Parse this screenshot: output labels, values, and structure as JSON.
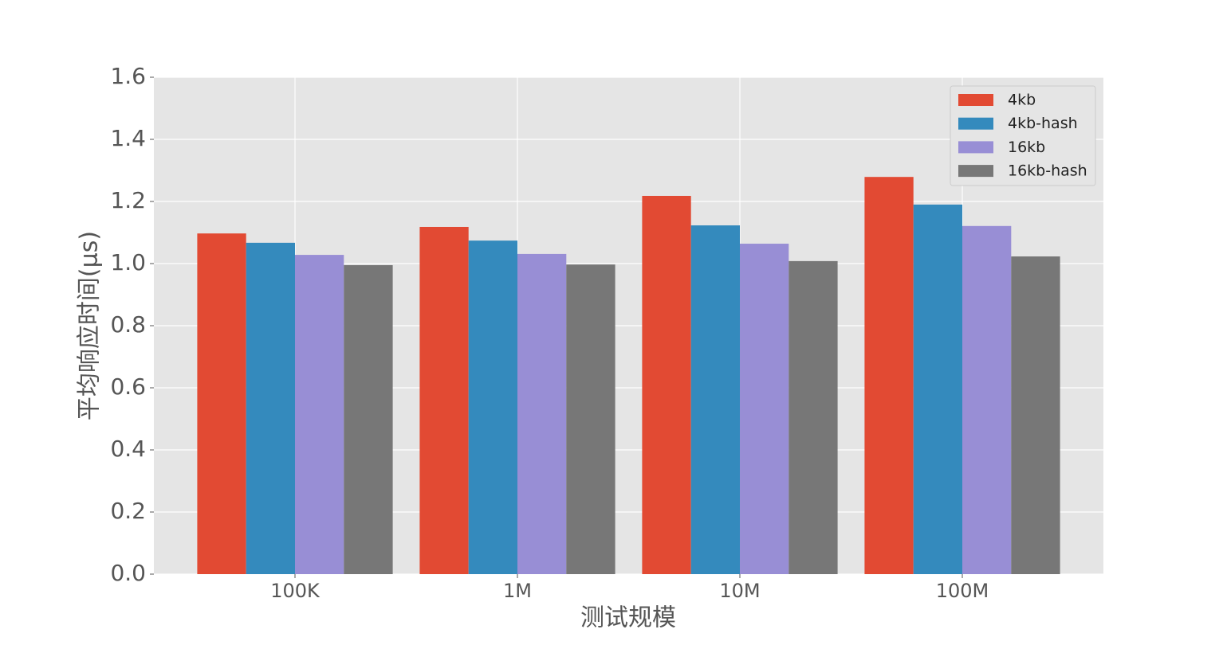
{
  "chart_data": {
    "type": "bar",
    "categories": [
      "100K",
      "1M",
      "10M",
      "100M"
    ],
    "series": [
      {
        "name": "4kb",
        "color": "#e24a33",
        "values": [
          1.097,
          1.118,
          1.218,
          1.279
        ]
      },
      {
        "name": "4kb-hash",
        "color": "#348abd",
        "values": [
          1.067,
          1.074,
          1.123,
          1.19
        ]
      },
      {
        "name": "16kb",
        "color": "#988ed5",
        "values": [
          1.028,
          1.031,
          1.064,
          1.121
        ]
      },
      {
        "name": "16kb-hash",
        "color": "#777777",
        "values": [
          0.995,
          0.997,
          1.008,
          1.023
        ]
      }
    ],
    "x_label": "测试规模",
    "y_label": "平均响应时间(μs)",
    "ylim": [
      0,
      1.6
    ],
    "yticks": [
      {
        "value": 0,
        "label": "0.0"
      },
      0.2,
      0.4,
      0.6,
      0.8,
      {
        "value": 1,
        "label": "1.0"
      },
      1.2,
      1.4,
      1.6
    ],
    "grid": true,
    "legend": "upper right"
  }
}
